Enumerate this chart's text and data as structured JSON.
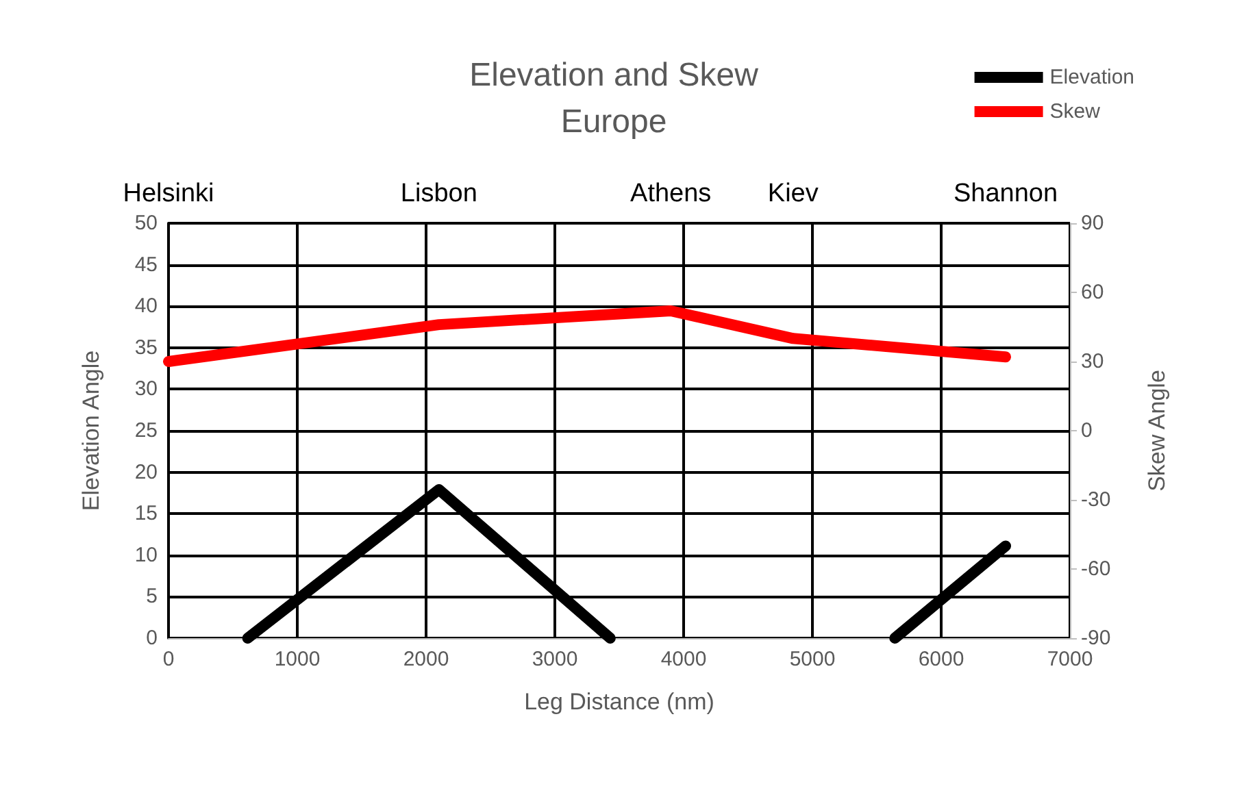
{
  "chart_data": {
    "type": "line",
    "title": "Elevation and Skew",
    "subtitle": "Europe",
    "xlabel": "Leg Distance (nm)",
    "ylabel": "Elevation Angle",
    "y2label": "Skew Angle",
    "xlim": [
      0,
      7000
    ],
    "xticks": [
      0,
      1000,
      2000,
      3000,
      4000,
      5000,
      6000,
      7000
    ],
    "annotations": [
      "Helsinki",
      "Lisbon",
      "Athens",
      "Kiev",
      "Shannon"
    ],
    "ylim": [
      0,
      50
    ],
    "yticks": [
      0,
      5,
      10,
      15,
      20,
      25,
      30,
      35,
      40,
      45,
      50
    ],
    "y2lim": [
      -90,
      90
    ],
    "y2ticks": [
      -90,
      -60,
      -30,
      0,
      30,
      60,
      90
    ],
    "grid": true,
    "legend": "top right",
    "line_style": "solid",
    "series": [
      {
        "name": "Elevation",
        "color": "#000000",
        "x": [
          615,
          2100,
          3430,
          4500,
          5640,
          6500
        ],
        "values": [
          0,
          17.9,
          0,
          null,
          0,
          11.1
        ]
      },
      {
        "name": "Skew",
        "color": "#ff0000",
        "axis": "y2",
        "x": [
          0,
          2100,
          3900,
          4850,
          6500
        ],
        "values": [
          30,
          46,
          52,
          40,
          32
        ]
      }
    ]
  }
}
